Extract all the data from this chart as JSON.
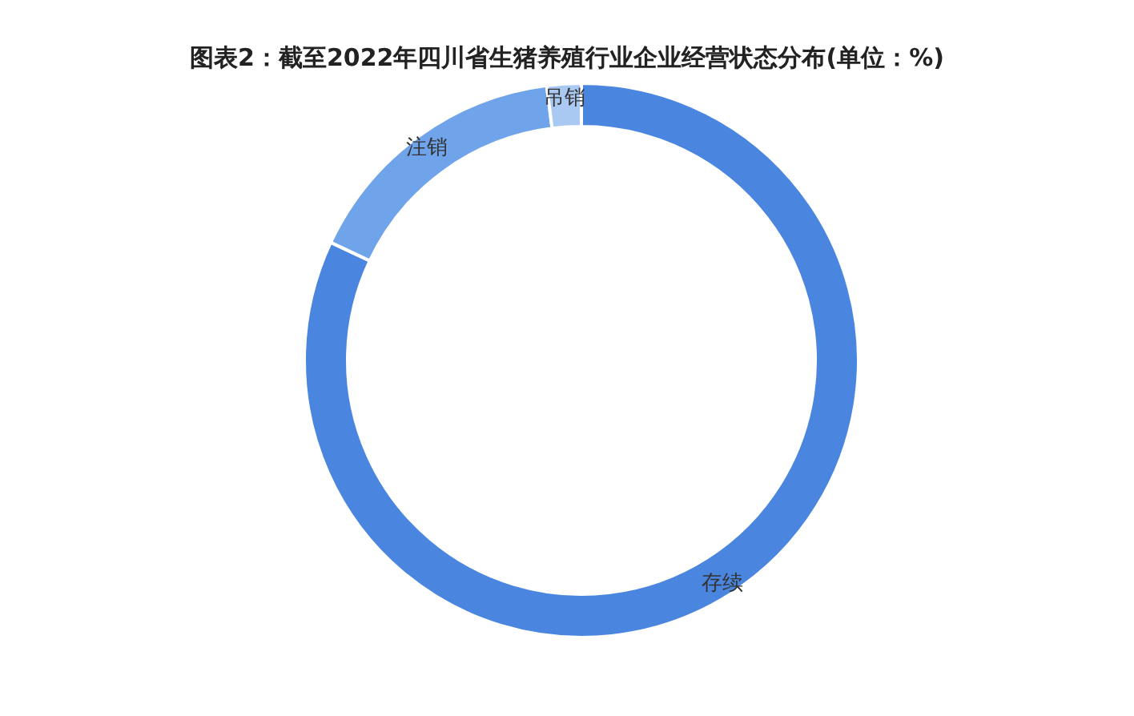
{
  "chart_data": {
    "type": "donut",
    "title": "图表2：截至2022年四川省生猪养殖行业企业经营状态分布(单位：%)",
    "categories": [
      "存续",
      "注销",
      "吊销"
    ],
    "values": [
      82,
      16,
      2
    ],
    "colors": [
      "#4a86e0",
      "#6fa3ea",
      "#a9c9f3"
    ]
  }
}
